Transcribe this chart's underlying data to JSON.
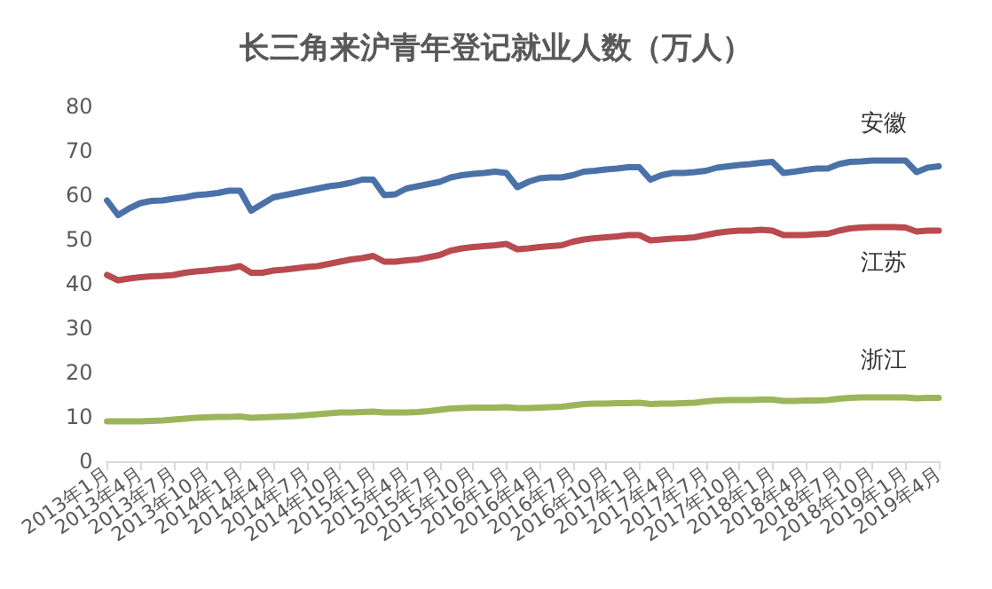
{
  "chart_data": {
    "type": "line",
    "title": "长三角来沪青年登记就业人数（万人）",
    "categories": [
      "2013年1月",
      null,
      null,
      "2013年4月",
      null,
      null,
      "2013年7月",
      null,
      null,
      "2013年10月",
      null,
      null,
      "2014年1月",
      null,
      null,
      "2014年4月",
      null,
      null,
      "2014年7月",
      null,
      null,
      "2014年10月",
      null,
      null,
      "2015年1月",
      null,
      null,
      "2015年4月",
      null,
      null,
      "2015年7月",
      null,
      null,
      "2015年10月",
      null,
      null,
      "2016年1月",
      null,
      null,
      "2016年4月",
      null,
      null,
      "2016年7月",
      null,
      null,
      "2016年10月",
      null,
      null,
      "2017年1月",
      null,
      null,
      "2017年4月",
      null,
      null,
      "2017年7月",
      null,
      null,
      "2017年10月",
      null,
      null,
      "2018年1月",
      null,
      null,
      "2018年4月",
      null,
      null,
      "2018年7月",
      null,
      null,
      "2018年10月",
      null,
      null,
      "2019年1月",
      null,
      null,
      "2019年4月"
    ],
    "series": [
      {
        "name": "安徽",
        "color": "#4a72a8",
        "values": [
          58.8,
          55.5,
          57,
          58.2,
          58.7,
          58.8,
          59.2,
          59.5,
          60,
          60.2,
          60.5,
          61,
          61,
          56.5,
          58,
          59.5,
          60,
          60.5,
          61,
          61.5,
          62,
          62.3,
          62.8,
          63.5,
          63.5,
          60,
          60.2,
          61.5,
          62,
          62.5,
          63,
          64,
          64.5,
          64.8,
          65,
          65.3,
          65,
          61.8,
          63,
          63.8,
          64,
          64,
          64.5,
          65.3,
          65.5,
          65.8,
          66,
          66.3,
          66.3,
          63.5,
          64.5,
          65,
          65,
          65.2,
          65.5,
          66.2,
          66.5,
          66.8,
          67,
          67.3,
          67.5,
          65,
          65.3,
          65.7,
          66,
          66,
          67,
          67.5,
          67.6,
          67.8,
          67.8,
          67.8,
          67.8,
          65.2,
          66.2,
          66.5
        ]
      },
      {
        "name": "江苏",
        "color": "#b94a4f",
        "values": [
          42,
          40.8,
          41.2,
          41.5,
          41.7,
          41.8,
          42,
          42.5,
          42.8,
          43,
          43.3,
          43.5,
          44,
          42.5,
          42.5,
          43,
          43.2,
          43.5,
          43.8,
          44,
          44.5,
          45,
          45.5,
          45.8,
          46.3,
          45,
          45,
          45.3,
          45.5,
          46,
          46.5,
          47.5,
          48,
          48.3,
          48.5,
          48.7,
          49,
          47.8,
          48,
          48.3,
          48.5,
          48.7,
          49.5,
          50,
          50.3,
          50.5,
          50.7,
          51,
          51,
          49.8,
          50,
          50.2,
          50.3,
          50.5,
          51,
          51.5,
          51.8,
          52,
          52,
          52.2,
          52,
          51,
          51,
          51,
          51.2,
          51.3,
          52,
          52.5,
          52.7,
          52.8,
          52.8,
          52.8,
          52.7,
          51.8,
          52,
          52
        ]
      },
      {
        "name": "浙江",
        "color": "#9bb65a",
        "values": [
          9,
          9,
          9,
          9,
          9.1,
          9.2,
          9.4,
          9.6,
          9.8,
          9.9,
          10,
          10,
          10.1,
          9.8,
          9.9,
          10,
          10.1,
          10.2,
          10.4,
          10.6,
          10.8,
          11,
          11,
          11.1,
          11.2,
          11,
          11,
          11,
          11.1,
          11.3,
          11.6,
          11.9,
          12,
          12.1,
          12.1,
          12.1,
          12.2,
          12,
          12,
          12.1,
          12.2,
          12.3,
          12.6,
          12.9,
          13,
          13,
          13.1,
          13.1,
          13.2,
          12.9,
          13,
          13,
          13.1,
          13.2,
          13.5,
          13.7,
          13.8,
          13.8,
          13.8,
          13.9,
          13.9,
          13.6,
          13.6,
          13.7,
          13.7,
          13.8,
          14.1,
          14.3,
          14.4,
          14.4,
          14.4,
          14.4,
          14.4,
          14.2,
          14.3,
          14.3
        ]
      }
    ],
    "ylim": [
      0,
      80
    ],
    "yticks": [
      0,
      10,
      20,
      30,
      40,
      50,
      60,
      70,
      80
    ],
    "grid": false,
    "legend": false,
    "marker": "none",
    "line_style": "solid"
  }
}
